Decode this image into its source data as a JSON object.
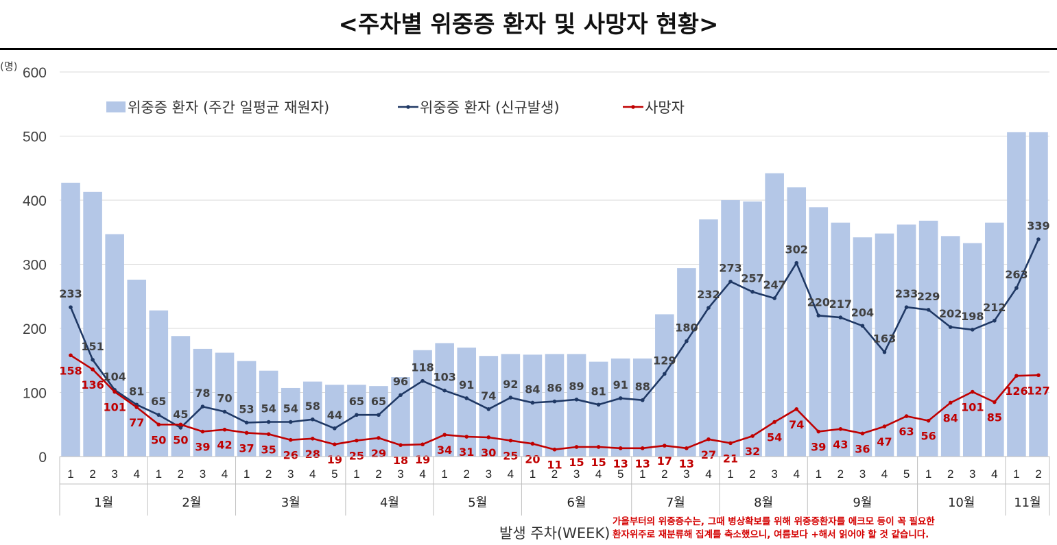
{
  "colors": {
    "bar": "#b4c7e7",
    "new": "#1f3864",
    "death": "#c00000",
    "grid": "#d9d9d9",
    "axis_text": "#404040"
  },
  "chart_data": {
    "type": "bar+line",
    "title": "<주차별 위중증 환자 및 사망자 현황>",
    "ylabel": "(명)",
    "xlabel": "발생 주차(WEEK)",
    "ylim": [
      0,
      600
    ],
    "yticks": [
      "0",
      "100",
      "200",
      "300",
      "400",
      "500",
      "600"
    ],
    "weeks": [
      "1",
      "2",
      "3",
      "4",
      "1",
      "2",
      "3",
      "4",
      "1",
      "2",
      "3",
      "4",
      "5",
      "1",
      "2",
      "3",
      "4",
      "1",
      "2",
      "3",
      "4",
      "1",
      "2",
      "3",
      "4",
      "5",
      "1",
      "2",
      "3",
      "4",
      "1",
      "2",
      "3",
      "4",
      "1",
      "2",
      "3",
      "4",
      "5",
      "1",
      "2",
      "3",
      "4",
      "1",
      "2"
    ],
    "months": [
      {
        "label": "1월",
        "count": 4
      },
      {
        "label": "2월",
        "count": 4
      },
      {
        "label": "3월",
        "count": 5
      },
      {
        "label": "4월",
        "count": 4
      },
      {
        "label": "5월",
        "count": 4
      },
      {
        "label": "6월",
        "count": 5
      },
      {
        "label": "7월",
        "count": 4
      },
      {
        "label": "8월",
        "count": 4
      },
      {
        "label": "9월",
        "count": 5
      },
      {
        "label": "10월",
        "count": 4
      },
      {
        "label": "11월",
        "count": 2
      }
    ],
    "series": [
      {
        "name": "위중증 환자 (주간 일평균 재원자)",
        "type": "bar",
        "values": [
          427,
          413,
          347,
          276,
          228,
          188,
          168,
          162,
          149,
          134,
          107,
          117,
          112,
          112,
          110,
          124,
          166,
          177,
          170,
          157,
          160,
          159,
          160,
          160,
          148,
          153,
          153,
          222,
          294,
          370,
          400,
          398,
          442,
          420,
          389,
          365,
          342,
          348,
          362,
          368,
          344,
          333,
          365,
          506,
          506
        ]
      },
      {
        "name": "위중증 환자 (신규발생)",
        "type": "line",
        "values": [
          233,
          151,
          104,
          81,
          65,
          45,
          78,
          70,
          53,
          54,
          54,
          58,
          44,
          65,
          65,
          96,
          118,
          103,
          91,
          74,
          92,
          84,
          86,
          89,
          81,
          91,
          88,
          129,
          180,
          232,
          273,
          257,
          247,
          302,
          220,
          217,
          204,
          163,
          233,
          229,
          202,
          198,
          212,
          263,
          339
        ]
      },
      {
        "name": "사망자",
        "type": "line",
        "values": [
          158,
          136,
          101,
          77,
          50,
          50,
          39,
          42,
          37,
          35,
          26,
          28,
          19,
          25,
          29,
          18,
          19,
          34,
          31,
          30,
          25,
          20,
          11,
          15,
          15,
          13,
          13,
          17,
          13,
          27,
          21,
          32,
          54,
          74,
          39,
          43,
          36,
          47,
          63,
          56,
          84,
          101,
          85,
          126,
          127
        ]
      }
    ],
    "legend": [
      "위중증 환자 (주간 일평균 재원자)",
      "위중증 환자 (신규발생)",
      "사망자"
    ]
  },
  "note_lines": [
    "가을부터의 위중증수는, 그때 병상확보를 위해 위중증환자를 에크모 등이 꼭 필요한",
    "환자위주로 재분류해 집계를 축소했으니, 여름보다 +해서 읽어야 할 것 같습니다."
  ]
}
